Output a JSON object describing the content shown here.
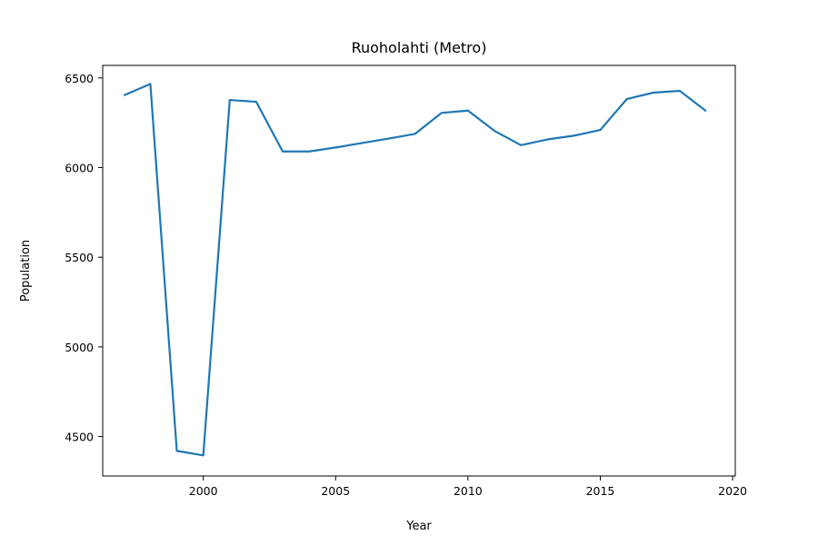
{
  "chart_data": {
    "type": "line",
    "title": "Ruoholahti (Metro)",
    "xlabel": "Year",
    "ylabel": "Population",
    "xlim": [
      1996.2,
      2020.1
    ],
    "ylim": [
      4280,
      6570
    ],
    "grid": false,
    "xticks": [
      2000,
      2005,
      2010,
      2015,
      2020
    ],
    "yticks": [
      4500,
      5000,
      5500,
      6000,
      6500
    ],
    "series": [
      {
        "color": "#1f77b4",
        "x": [
          1997,
          1998,
          1999,
          2000,
          2001,
          2002,
          2003,
          2004,
          2005,
          2006,
          2007,
          2008,
          2009,
          2010,
          2011,
          2012,
          2013,
          2014,
          2015,
          2016,
          2017,
          2018,
          2019
        ],
        "y": [
          6403,
          6467,
          4420,
          4395,
          6377,
          6367,
          6090,
          6090,
          6112,
          6137,
          6162,
          6188,
          6305,
          6318,
          6205,
          6125,
          6157,
          6178,
          6210,
          6382,
          6418,
          6428,
          6315
        ]
      }
    ]
  }
}
